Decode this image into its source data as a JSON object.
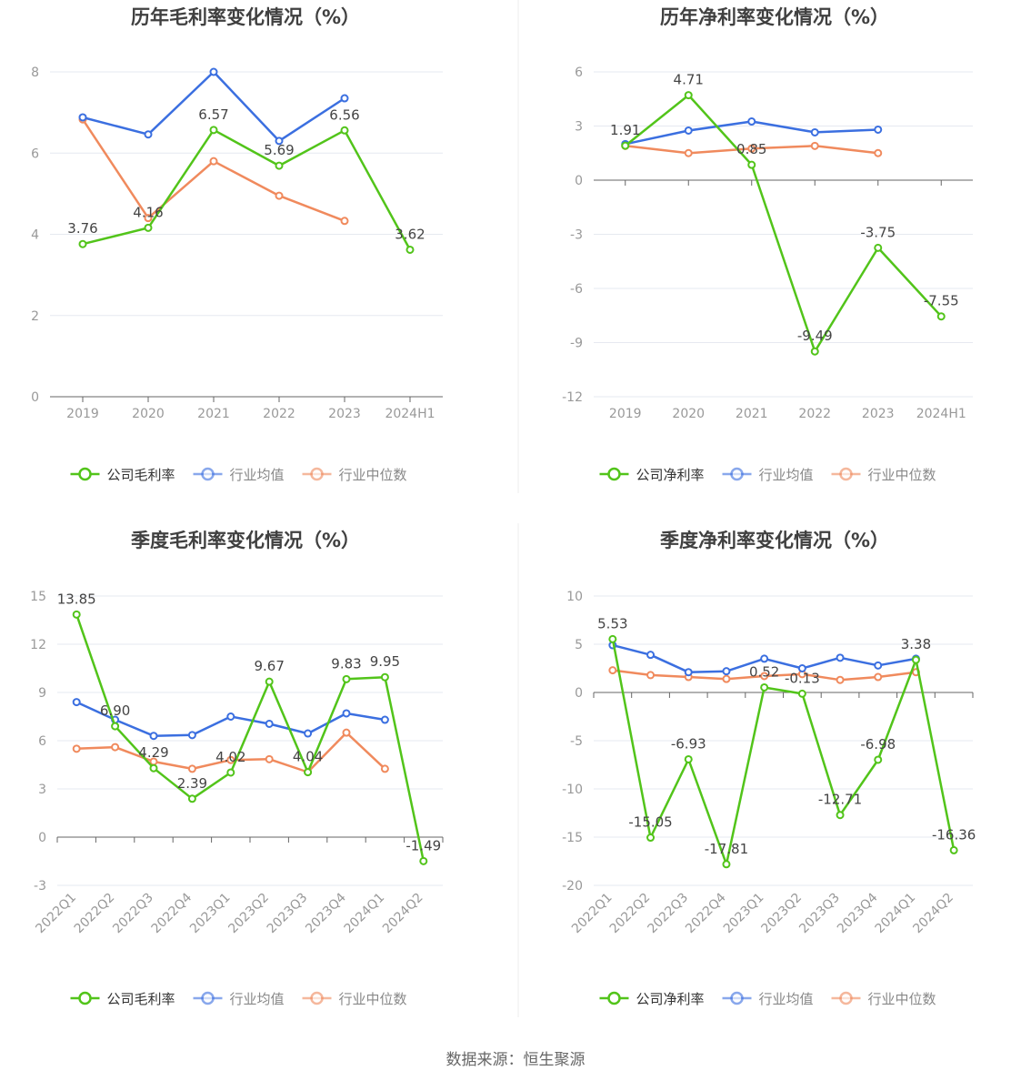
{
  "source_label": "数据来源：恒生聚源",
  "colors": {
    "company": "#52c41a",
    "avg": "#3b6fe0",
    "median": "#f08a5d",
    "grid": "#e6e9f0",
    "axis": "#666666",
    "title": "#404040",
    "tick": "#999999"
  },
  "chart_data": [
    {
      "type": "line",
      "title": "历年毛利率变化情况（%）",
      "categories": [
        "2019",
        "2020",
        "2021",
        "2022",
        "2023",
        "2024H1"
      ],
      "ylim": [
        0,
        8
      ],
      "yticks": [
        0,
        2,
        4,
        6,
        8
      ],
      "grid": true,
      "legend_position": "bottom",
      "series": [
        {
          "name": "公司毛利率",
          "role": "company",
          "values": [
            3.76,
            4.16,
            6.57,
            5.69,
            6.56,
            3.62
          ],
          "labels": [
            "3.76",
            "4.16",
            "6.57",
            "5.69",
            "6.56",
            "3.62"
          ]
        },
        {
          "name": "行业均值",
          "role": "avg",
          "values": [
            6.88,
            6.46,
            8.0,
            6.3,
            7.35,
            null
          ]
        },
        {
          "name": "行业中位数",
          "role": "median",
          "values": [
            6.83,
            4.4,
            5.8,
            4.95,
            4.33,
            null
          ]
        }
      ]
    },
    {
      "type": "line",
      "title": "历年净利率变化情况（%）",
      "categories": [
        "2019",
        "2020",
        "2021",
        "2022",
        "2023",
        "2024H1"
      ],
      "ylim": [
        -12,
        6
      ],
      "yticks": [
        -12,
        -9,
        -6,
        -3,
        0,
        3,
        6
      ],
      "grid": true,
      "legend_position": "bottom",
      "series": [
        {
          "name": "公司净利率",
          "role": "company",
          "values": [
            1.91,
            4.71,
            0.85,
            -9.49,
            -3.75,
            -7.55
          ],
          "labels": [
            "1.91",
            "4.71",
            "0.85",
            "-9.49",
            "-3.75",
            "-7.55"
          ]
        },
        {
          "name": "行业均值",
          "role": "avg",
          "values": [
            2.0,
            2.75,
            3.25,
            2.65,
            2.8,
            null
          ]
        },
        {
          "name": "行业中位数",
          "role": "median",
          "values": [
            1.9,
            1.5,
            1.75,
            1.9,
            1.5,
            null
          ]
        }
      ]
    },
    {
      "type": "line",
      "title": "季度毛利率变化情况（%）",
      "categories": [
        "2022Q1",
        "2022Q2",
        "2022Q3",
        "2022Q4",
        "2023Q1",
        "2023Q2",
        "2023Q3",
        "2023Q4",
        "2024Q1",
        "2024Q2"
      ],
      "ylim": [
        -3,
        15
      ],
      "yticks": [
        -3,
        0,
        3,
        6,
        9,
        12,
        15
      ],
      "grid": true,
      "legend_position": "bottom",
      "series": [
        {
          "name": "公司毛利率",
          "role": "company",
          "values": [
            13.85,
            6.9,
            4.29,
            2.39,
            4.02,
            9.67,
            4.04,
            9.83,
            9.95,
            -1.49
          ],
          "labels": [
            "13.85",
            "6.90",
            "4.29",
            "2.39",
            "4.02",
            "9.67",
            "4.04",
            "9.83",
            "9.95",
            "-1.49"
          ]
        },
        {
          "name": "行业均值",
          "role": "avg",
          "values": [
            8.4,
            7.3,
            6.3,
            6.35,
            7.5,
            7.05,
            6.45,
            7.7,
            7.3,
            null
          ]
        },
        {
          "name": "行业中位数",
          "role": "median",
          "values": [
            5.5,
            5.6,
            4.7,
            4.25,
            4.8,
            4.85,
            4.05,
            6.5,
            4.25,
            null
          ]
        }
      ]
    },
    {
      "type": "line",
      "title": "季度净利率变化情况（%）",
      "categories": [
        "2022Q1",
        "2022Q2",
        "2022Q3",
        "2022Q4",
        "2023Q1",
        "2023Q2",
        "2023Q3",
        "2023Q4",
        "2024Q1",
        "2024Q2"
      ],
      "ylim": [
        -20,
        10
      ],
      "yticks": [
        -20,
        -15,
        -10,
        -5,
        0,
        5,
        10
      ],
      "grid": true,
      "legend_position": "bottom",
      "series": [
        {
          "name": "公司净利率",
          "role": "company",
          "values": [
            5.53,
            -15.05,
            -6.93,
            -17.81,
            0.52,
            -0.13,
            -12.71,
            -6.98,
            3.38,
            -16.36
          ],
          "labels": [
            "5.53",
            "-15.05",
            "-6.93",
            "-17.81",
            "0.52",
            "-0.13",
            "-12.71",
            "-6.98",
            "3.38",
            "-16.36"
          ]
        },
        {
          "name": "行业均值",
          "role": "avg",
          "values": [
            4.9,
            3.9,
            2.1,
            2.2,
            3.5,
            2.5,
            3.6,
            2.8,
            3.5,
            null
          ]
        },
        {
          "name": "行业中位数",
          "role": "median",
          "values": [
            2.3,
            1.8,
            1.6,
            1.4,
            1.7,
            1.9,
            1.3,
            1.6,
            2.1,
            null
          ]
        }
      ]
    }
  ]
}
